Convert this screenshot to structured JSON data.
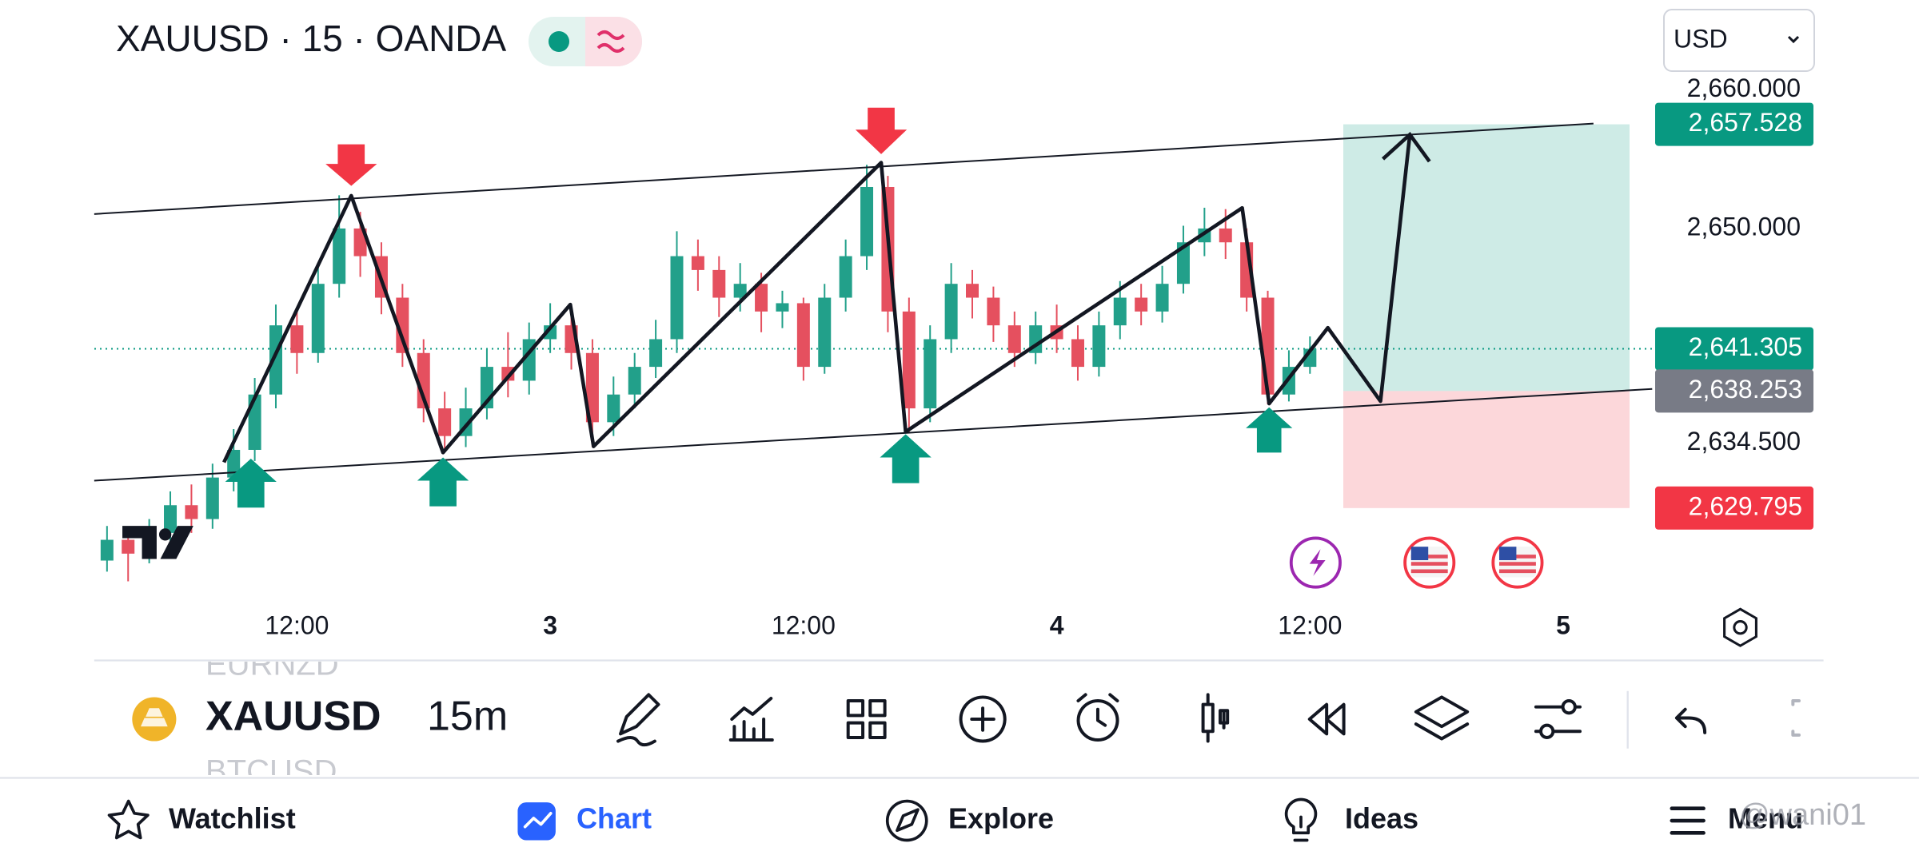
{
  "header": {
    "symbol_title": "XAUUSD · 15 · OANDA",
    "currency": "USD"
  },
  "chart_data": {
    "type": "candlestick",
    "x": [
      3,
      4,
      5,
      6,
      7,
      8,
      9,
      10,
      11,
      12,
      13,
      14,
      15,
      16,
      17,
      18,
      19,
      20,
      21,
      22,
      23,
      24,
      25,
      26,
      27,
      28,
      29,
      30,
      31,
      32,
      33,
      34,
      35,
      36,
      37,
      38,
      39,
      40,
      41,
      42,
      43,
      44,
      45,
      46,
      47,
      48,
      49,
      50,
      51,
      52,
      53,
      54,
      55,
      56,
      57,
      58,
      59,
      60
    ],
    "open": [
      2626,
      2627.5,
      2626.5,
      2628,
      2630,
      2629,
      2632,
      2634,
      2638,
      2643,
      2641,
      2646,
      2650,
      2648,
      2645,
      2641,
      2637,
      2635,
      2637,
      2640,
      2639,
      2642,
      2643,
      2641,
      2636,
      2638,
      2640,
      2642,
      2648,
      2647,
      2645,
      2646,
      2644,
      2644.6,
      2640,
      2645,
      2648,
      2653,
      2644,
      2637,
      2642,
      2646,
      2645,
      2643,
      2641,
      2643,
      2642,
      2640,
      2643,
      2645,
      2644,
      2646,
      2649,
      2650,
      2649,
      2645,
      2638,
      2640
    ],
    "high": [
      2628.5,
      2628.3,
      2629,
      2631,
      2631.5,
      2633,
      2635.5,
      2639.2,
      2644.5,
      2644,
      2647.2,
      2652.4,
      2651.2,
      2649,
      2646,
      2642,
      2638.2,
      2638.5,
      2641.3,
      2642.5,
      2643.2,
      2644.6,
      2644,
      2642,
      2639.3,
      2641,
      2643.4,
      2649.8,
      2649.2,
      2648,
      2647.5,
      2646.8,
      2645.5,
      2645,
      2646,
      2649.2,
      2654.6,
      2653.8,
      2645,
      2643,
      2647.5,
      2647,
      2645.8,
      2644,
      2644,
      2644.5,
      2643,
      2644,
      2646.2,
      2646,
      2647.3,
      2650.2,
      2651.5,
      2651.4,
      2650,
      2645.5,
      2641.2,
      2642.2
    ],
    "low": [
      2625.2,
      2624.5,
      2625.8,
      2627.4,
      2628,
      2628.3,
      2631,
      2633.2,
      2637,
      2639.5,
      2640.3,
      2645,
      2646.5,
      2643.8,
      2640,
      2636,
      2633.8,
      2634.2,
      2636.2,
      2637.8,
      2638,
      2641,
      2639.8,
      2634.2,
      2635,
      2637,
      2639.2,
      2641,
      2645.5,
      2643.6,
      2644,
      2642.5,
      2642.8,
      2639,
      2639.5,
      2644,
      2647,
      2642.5,
      2635.3,
      2636,
      2641,
      2643.5,
      2641.8,
      2640,
      2640.2,
      2641,
      2639,
      2639.3,
      2642,
      2643,
      2643.2,
      2645.3,
      2648,
      2647.8,
      2644,
      2637.3,
      2637.5,
      2639.5
    ],
    "close": [
      2627.5,
      2626.5,
      2628,
      2630,
      2629,
      2632,
      2634,
      2638,
      2643,
      2641,
      2646,
      2650,
      2648,
      2645,
      2641,
      2637,
      2635,
      2637,
      2640,
      2639,
      2642,
      2643,
      2641,
      2636,
      2638,
      2640,
      2642,
      2648,
      2647,
      2645,
      2646,
      2644,
      2644.6,
      2640,
      2645,
      2648,
      2653,
      2644,
      2637,
      2642,
      2646,
      2645,
      2643,
      2641,
      2643,
      2642,
      2640,
      2643,
      2645,
      2644,
      2646,
      2649,
      2650,
      2649,
      2645,
      2638,
      2640,
      2641.305
    ],
    "up_color": "#22a08a",
    "down_color": "#e5505f",
    "xlim": [
      2.4,
      75.9
    ],
    "xticks": [
      {
        "value": 12,
        "label": "12:00"
      },
      {
        "value": 24,
        "label": "3"
      },
      {
        "value": 36,
        "label": "12:00"
      },
      {
        "value": 48,
        "label": "4"
      },
      {
        "value": 60,
        "label": "12:00"
      },
      {
        "value": 72,
        "label": "5"
      }
    ],
    "ylim": [
      2623.2,
      2661.2
    ],
    "yticks": [
      {
        "value": 2660,
        "label": "2,660.000"
      },
      {
        "value": 2650,
        "label": "2,650.000"
      },
      {
        "value": 2634.5,
        "label": "2,634.500"
      }
    ],
    "price_tags": [
      {
        "value": 2657.528,
        "label": "2,657.528",
        "color": "#089981"
      },
      {
        "value": 2641.305,
        "label": "2,641.305",
        "color": "#089981"
      },
      {
        "value": 2638.253,
        "label": "2,638.253",
        "color": "#787b86"
      },
      {
        "value": 2629.795,
        "label": "2,629.795",
        "color": "#f23645"
      }
    ]
  },
  "toolbar": {
    "symbol": "XAUUSD",
    "interval": "15m",
    "prev_symbol": "EURNZD",
    "next_symbol": "BTCUSD"
  },
  "nav": [
    "Watchlist",
    "Chart",
    "Explore",
    "Ideas",
    "Menu"
  ],
  "watermark": "@wani01"
}
